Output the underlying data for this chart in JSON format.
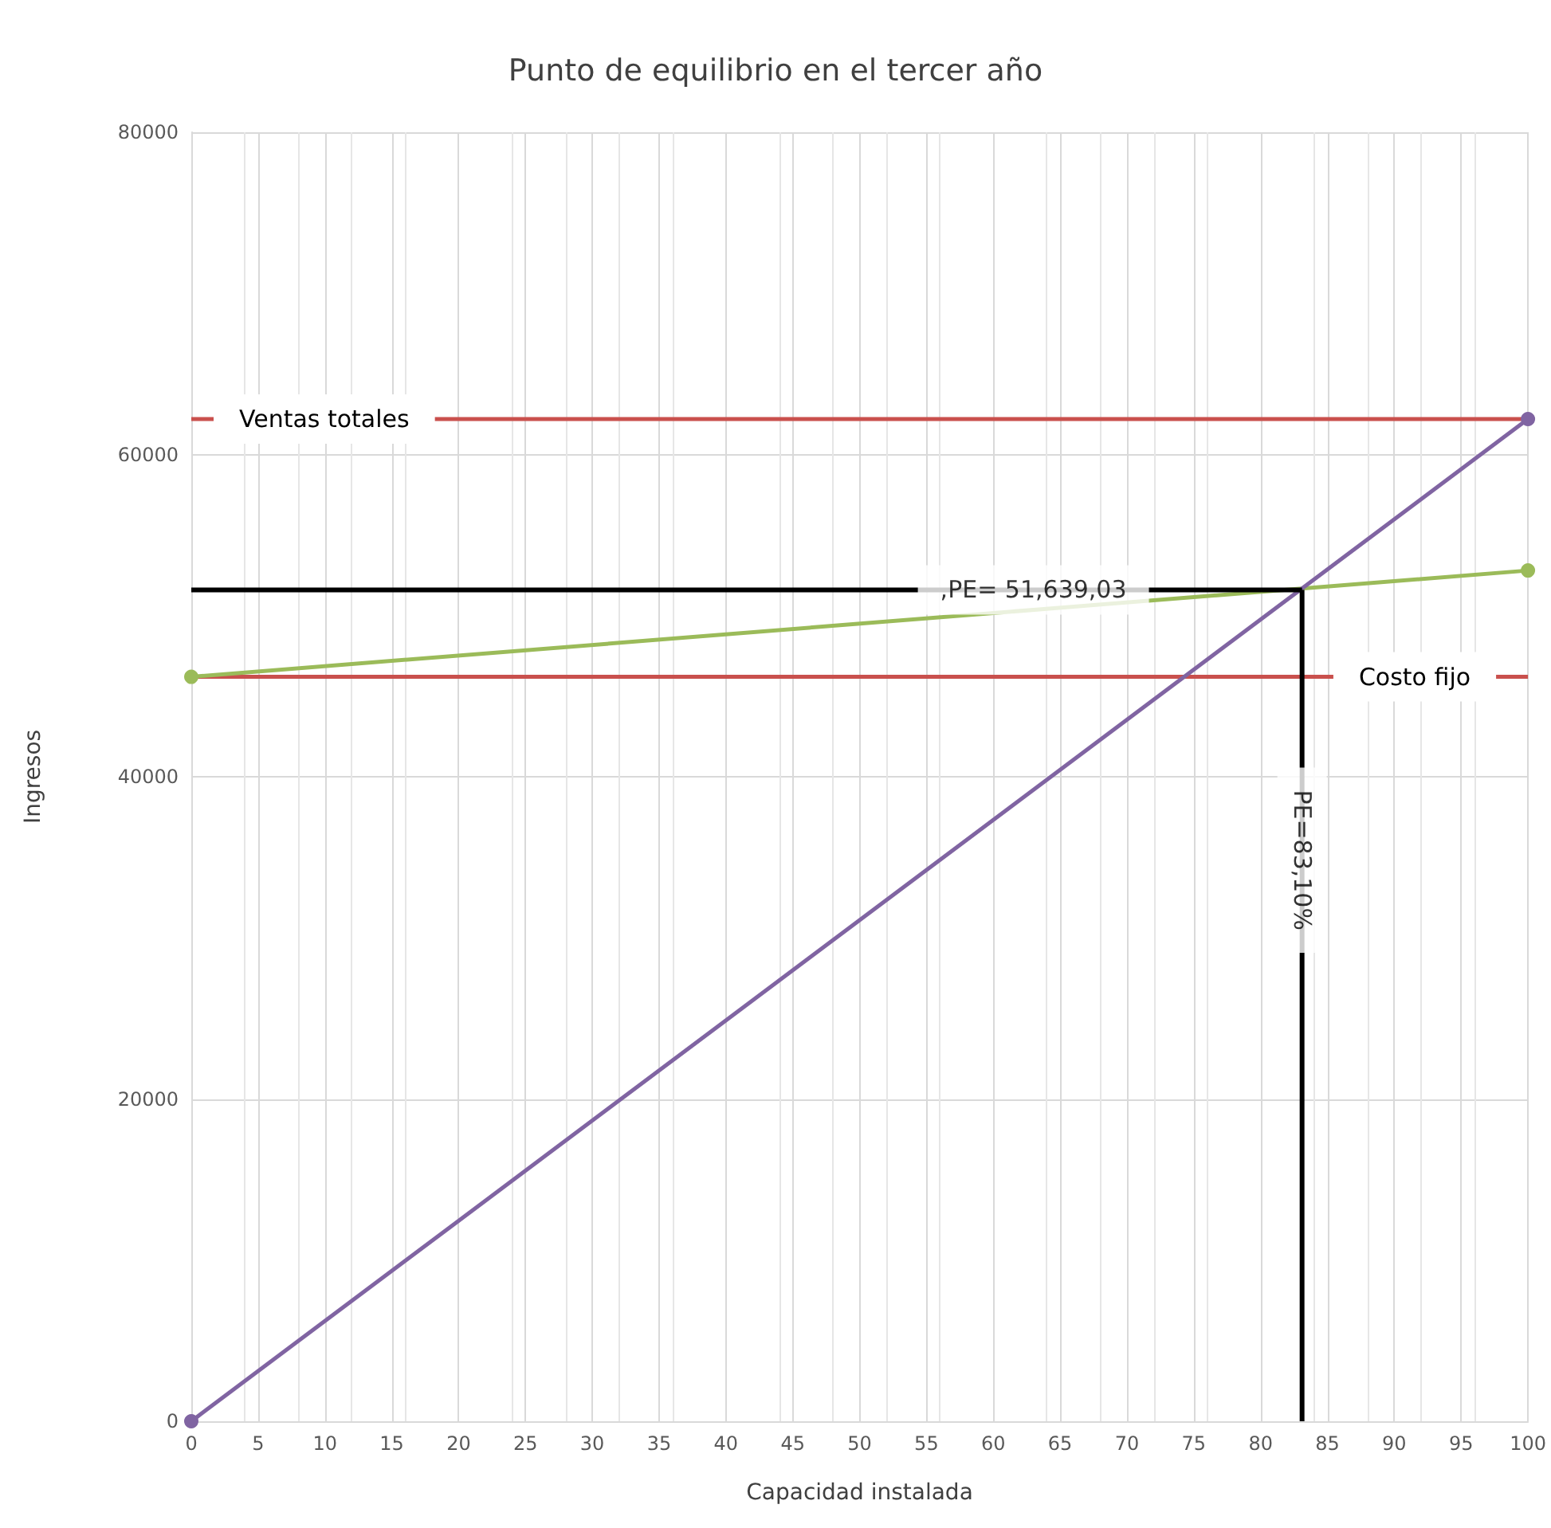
{
  "chart_data": {
    "type": "line",
    "title": "Punto de equilibrio en el tercer año",
    "xlabel": "Capacidad instalada",
    "ylabel": "Ingresos",
    "xlim": [
      0,
      100
    ],
    "xticks": [
      0,
      5,
      10,
      15,
      20,
      25,
      30,
      35,
      40,
      45,
      50,
      55,
      60,
      65,
      70,
      75,
      80,
      85,
      90,
      95,
      100
    ],
    "ylim": [
      0,
      80000
    ],
    "yticks": [
      0,
      20000,
      40000,
      60000,
      80000
    ],
    "grid": true,
    "legend": false,
    "series": [
      {
        "name": "Ventas totales",
        "color": "#c9504d",
        "x": [
          0,
          100
        ],
        "values": [
          62200,
          62200
        ],
        "marker": "none"
      },
      {
        "name": "Costo fijo",
        "color": "#c9504d",
        "x": [
          0,
          100
        ],
        "values": [
          46200,
          46200
        ],
        "marker": "none"
      },
      {
        "color": "#9bbb59",
        "x": [
          0,
          100
        ],
        "values": [
          46200,
          52800
        ],
        "marker": "circle"
      },
      {
        "color": "#8064a2",
        "x": [
          0,
          100
        ],
        "values": [
          0,
          62200
        ],
        "marker": "circle"
      },
      {
        "color": "#000000",
        "x": [
          0,
          83.1
        ],
        "values": [
          51600,
          51600
        ],
        "marker": "none"
      },
      {
        "color": "#000000",
        "x": [
          83.1,
          83.1
        ],
        "values": [
          0,
          51600
        ],
        "marker": "none"
      }
    ],
    "annotations": [
      {
        "text": ",PE= 51,639,03",
        "x": 63,
        "y": 51600
      },
      {
        "text": "PE=83,10%",
        "x": 83.1,
        "y": 37000
      }
    ]
  }
}
